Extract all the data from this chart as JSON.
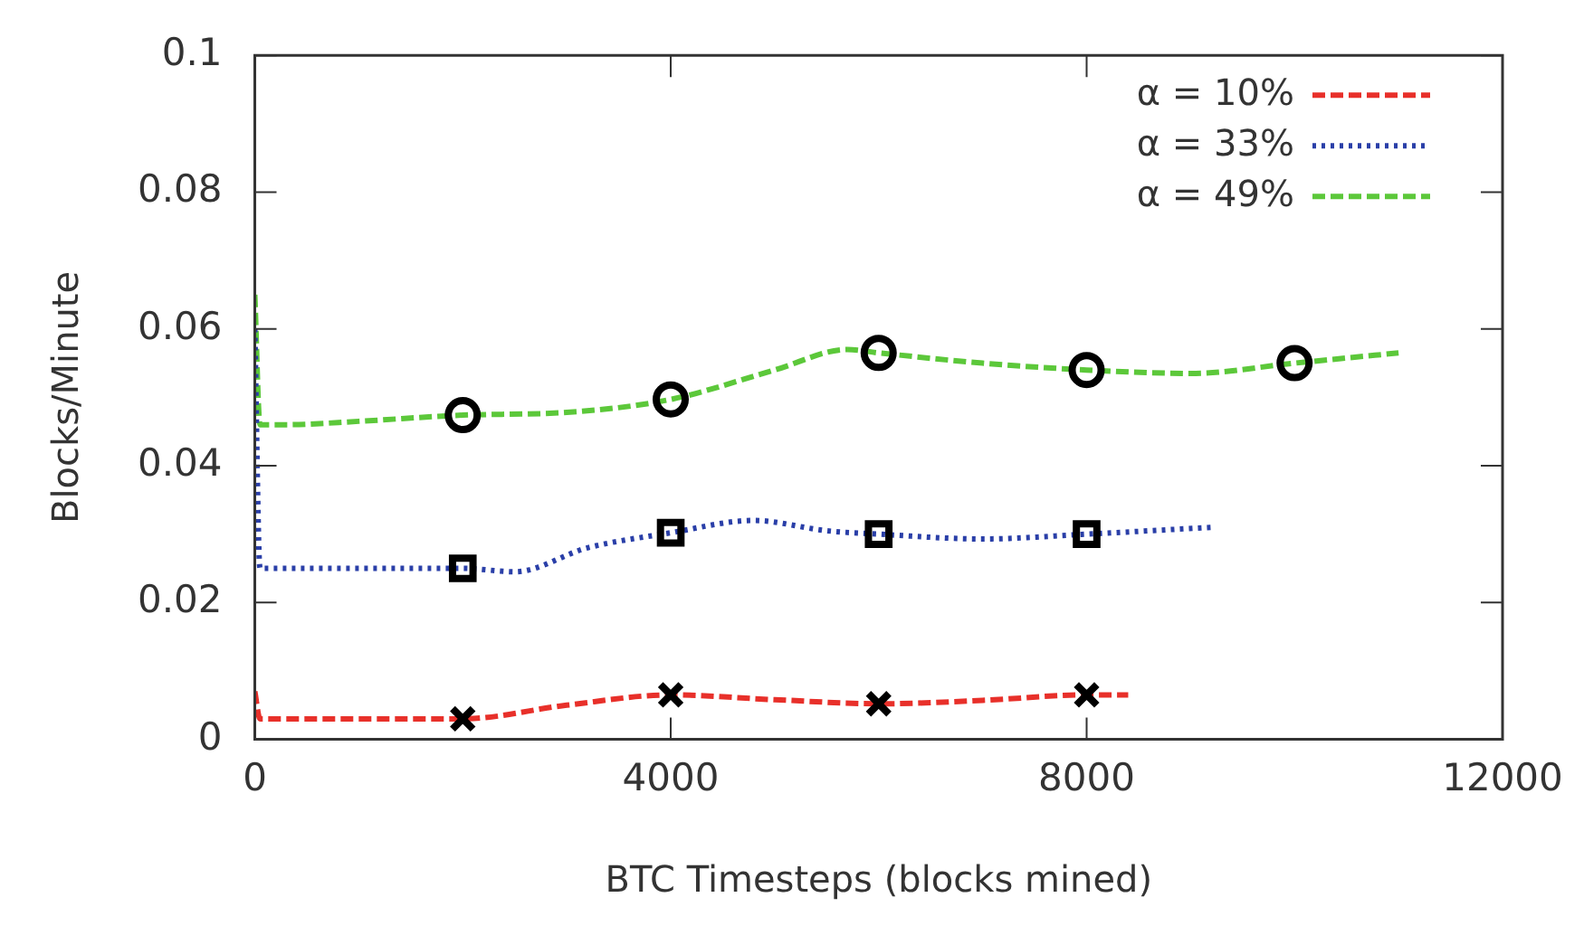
{
  "chart_data": {
    "type": "line",
    "xlabel": "BTC Timesteps (blocks mined)",
    "ylabel": "Blocks/Minute",
    "xlim": [
      0,
      12000
    ],
    "xticks": [
      0,
      4000,
      8000,
      12000
    ],
    "ylim": [
      0,
      0.1
    ],
    "yticks": [
      0,
      0.02,
      0.04,
      0.06,
      0.08,
      0.1
    ],
    "grid": false,
    "legend": "top right",
    "series": [
      {
        "name": "α = 10%",
        "color": "#e8302a",
        "line_style": "dashed",
        "marker": "none",
        "x": [
          0,
          50,
          300,
          1000,
          2000,
          3000,
          4000,
          5000,
          6000,
          7000,
          8000,
          8400
        ],
        "values": [
          0.007,
          0.003,
          0.003,
          0.003,
          0.003,
          0.005,
          0.0065,
          0.0058,
          0.0052,
          0.0057,
          0.0065,
          0.0065
        ]
      },
      {
        "name": "α = 33%",
        "color": "#2a3fa8",
        "line_style": "dotted",
        "marker": "none",
        "x": [
          0,
          50,
          300,
          1000,
          2000,
          2500,
          3200,
          4000,
          4800,
          5500,
          6000,
          7000,
          8000,
          9200
        ],
        "values": [
          0.06,
          0.025,
          0.025,
          0.025,
          0.025,
          0.0245,
          0.028,
          0.0302,
          0.032,
          0.0305,
          0.03,
          0.0293,
          0.03,
          0.031
        ]
      },
      {
        "name": "α = 49%",
        "color": "#5cc83a",
        "line_style": "dashed",
        "marker": "none",
        "x": [
          0,
          50,
          300,
          1000,
          2000,
          3000,
          4000,
          5000,
          5700,
          6000,
          7000,
          8000,
          9000,
          10000,
          11000
        ],
        "values": [
          0.065,
          0.046,
          0.046,
          0.0465,
          0.0474,
          0.0478,
          0.0497,
          0.054,
          0.057,
          0.0565,
          0.055,
          0.054,
          0.0535,
          0.055,
          0.0565
        ]
      },
      {
        "type": "scatter",
        "color": "#000000",
        "marker": "cross",
        "x": [
          2000,
          4000,
          6000,
          8000
        ],
        "values": [
          0.003,
          0.0065,
          0.0052,
          0.0065
        ]
      },
      {
        "type": "scatter",
        "color": "#000000",
        "marker": "square",
        "x": [
          2000,
          4000,
          6000,
          8000
        ],
        "values": [
          0.025,
          0.0302,
          0.03,
          0.03
        ]
      },
      {
        "type": "scatter",
        "color": "#000000",
        "marker": "circle",
        "x": [
          2000,
          4000,
          6000,
          8000,
          10000
        ],
        "values": [
          0.0474,
          0.0497,
          0.0565,
          0.054,
          0.055
        ]
      }
    ]
  }
}
